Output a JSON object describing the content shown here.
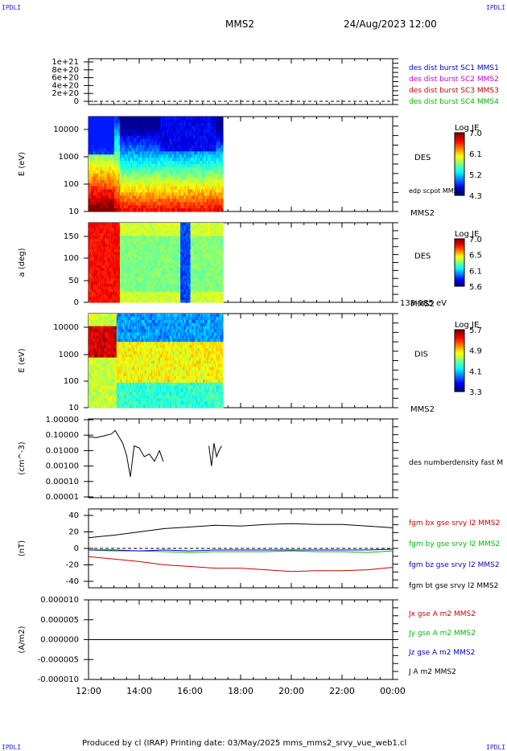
{
  "corners": {
    "tl": "IPDLI",
    "tr": "IPDLI",
    "bl": "IPDLI",
    "br": "IPDLI"
  },
  "header": {
    "spacecraft": "MMS2",
    "datetime": "24/Aug/2023 12:00"
  },
  "footer": {
    "text": "Produced by cl (IRAP)   Printing date: 03/May/2025   mms_mms2_srvy_vue_web1.cl"
  },
  "colors": {
    "blue": "#0000cc",
    "magenta": "#cc00cc",
    "red": "#cc0000",
    "green": "#00bb00",
    "black": "#000000"
  },
  "chart_data": [
    {
      "id": "burst",
      "type": "line",
      "yticks": [
        "1e+21",
        "8e+20",
        "6e+20",
        "4e+20",
        "2e+20",
        "0"
      ],
      "legend": [
        {
          "name": "des dist burst SC1 MMS1",
          "color": "#0000cc"
        },
        {
          "name": "des dist burst SC2 MMS2",
          "color": "#cc00cc"
        },
        {
          "name": "des dist burst SC3 MMS3",
          "color": "#cc0000"
        },
        {
          "name": "des dist burst SC4 MMS4",
          "color": "#00bb00"
        }
      ],
      "ylim": [
        0,
        1e+21
      ],
      "zero_line": "dashed"
    },
    {
      "id": "des_energy",
      "type": "heatmap",
      "ylabel": "E (eV)",
      "scale": "log",
      "yticks": [
        "10000",
        "1000",
        "100",
        "10"
      ],
      "label": "DES",
      "sublabel": "MMS2",
      "note": "edp scpot MMS2",
      "cbar": {
        "title": "Log JE",
        "ticks": [
          "7.0",
          "6.1",
          "5.2",
          "4.3"
        ]
      },
      "data_end_hour": 17.3
    },
    {
      "id": "des_pitch",
      "type": "heatmap",
      "ylabel": "a (deg)",
      "yticks": [
        "150",
        "100",
        "50",
        "0"
      ],
      "ylim": [
        0,
        180
      ],
      "label": "DES",
      "sublabel": "MMS2",
      "note": "138-185 eV",
      "cbar": {
        "title": "Log JE",
        "ticks": [
          "7.0",
          "6.5",
          "6.1",
          "5.6"
        ]
      },
      "data_end_hour": 17.3
    },
    {
      "id": "dis_energy",
      "type": "heatmap",
      "ylabel": "E (eV)",
      "scale": "log",
      "yticks": [
        "10000",
        "1000",
        "100",
        "10"
      ],
      "label": "DIS",
      "sublabel": "MMS2",
      "cbar": {
        "title": "Log JE",
        "ticks": [
          "5.7",
          "4.9",
          "4.1",
          "3.3"
        ]
      },
      "data_end_hour": 17.3
    },
    {
      "id": "density",
      "type": "line",
      "ylabel": "(cm^-3)",
      "scale": "log",
      "yticks": [
        "1.00000",
        "0.10000",
        "0.01000",
        "0.00100",
        "0.00010",
        "0.00001"
      ],
      "legend": [
        {
          "name": "des numberdensity fast M",
          "color": "#000000"
        }
      ],
      "segments": [
        {
          "x": [
            12.0,
            12.3,
            12.6,
            12.9,
            13.05,
            13.2,
            13.35,
            13.5,
            13.65,
            13.8,
            14.0,
            14.2,
            14.4,
            14.6,
            14.8,
            14.95
          ],
          "y": [
            0.08,
            0.07,
            0.09,
            0.12,
            0.2,
            0.08,
            0.03,
            0.005,
            0.0002,
            0.02,
            0.015,
            0.004,
            0.006,
            0.002,
            0.01,
            0.002
          ]
        },
        {
          "x": [
            16.75,
            16.85,
            16.95,
            17.05,
            17.15,
            17.25
          ],
          "y": [
            0.02,
            0.001,
            0.03,
            0.004,
            0.01,
            0.02
          ]
        }
      ]
    },
    {
      "id": "fgm",
      "type": "line",
      "ylabel": "(nT)",
      "ylim": [
        -48,
        48
      ],
      "yticks": [
        "40",
        "20",
        "0",
        "-20",
        "-40"
      ],
      "legend": [
        {
          "name": "fgm bx gse srvy l2 MMS2",
          "color": "#cc0000"
        },
        {
          "name": "fgm by gse srvy l2 MMS2",
          "color": "#00bb00"
        },
        {
          "name": "fgm bz gse srvy l2 MMS2",
          "color": "#0000cc"
        },
        {
          "name": "fgm bt gse srvy l2 MMS2",
          "color": "#000000"
        }
      ],
      "x": [
        12,
        13,
        14,
        15,
        16,
        17,
        18,
        19,
        20,
        21,
        22,
        23,
        24
      ],
      "series": [
        {
          "name": "bx",
          "color": "#cc0000",
          "values": [
            -10,
            -13,
            -16,
            -20,
            -22,
            -24,
            -24,
            -26,
            -28,
            -27,
            -27,
            -26,
            -23
          ]
        },
        {
          "name": "by",
          "color": "#00bb00",
          "values": [
            -2,
            -3,
            -3,
            -4,
            -5,
            -4,
            -4,
            -4,
            -3,
            -4,
            -4,
            -5,
            -3
          ]
        },
        {
          "name": "bz",
          "color": "#0000cc",
          "values": [
            -2,
            -2,
            -3,
            -2,
            -3,
            -2,
            -2,
            -2,
            -2,
            -2,
            -2,
            -2,
            -1
          ]
        },
        {
          "name": "bt",
          "color": "#000000",
          "values": [
            13,
            16,
            20,
            24,
            26,
            28,
            27,
            29,
            30,
            29,
            29,
            27,
            25
          ]
        }
      ]
    },
    {
      "id": "current",
      "type": "line",
      "ylabel": "(A/m2)",
      "ylim": [
        -1e-05,
        1e-05
      ],
      "yticks": [
        "0.000010",
        "0.000005",
        "0.000000",
        "-0.000005",
        "-0.000010"
      ],
      "legend": [
        {
          "name": "Jx gse A m2 MMS2",
          "color": "#cc0000"
        },
        {
          "name": "Jy gse A m2 MMS2",
          "color": "#00bb00"
        },
        {
          "name": "Jz gse A m2 MMS2",
          "color": "#0000cc"
        },
        {
          "name": "J A m2 MMS2",
          "color": "#000000"
        }
      ]
    }
  ],
  "xaxis": {
    "ticks": [
      "12:00",
      "14:00",
      "16:00",
      "18:00",
      "20:00",
      "22:00",
      "00:00"
    ],
    "range": [
      12,
      24
    ]
  }
}
